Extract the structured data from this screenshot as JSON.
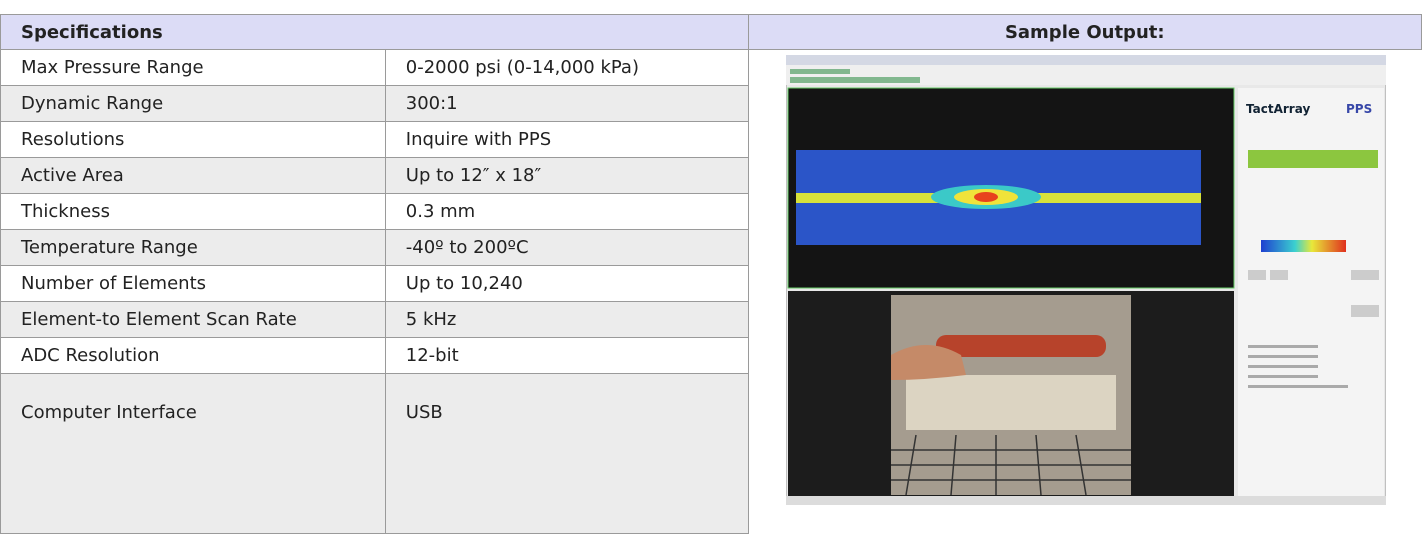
{
  "table": {
    "header": [
      "Specifications",
      "Sample Output:"
    ],
    "rows": [
      [
        "Max Pressure Range",
        "0-2000 psi (0-14,000 kPa)"
      ],
      [
        "Dynamic Range",
        "300:1"
      ],
      [
        "Resolutions",
        "Inquire with PPS"
      ],
      [
        "Active Area",
        "Up to 12″ x 18″"
      ],
      [
        "Thickness",
        "0.3 mm"
      ],
      [
        "Temperature Range",
        "-40º to 200ºC"
      ],
      [
        "Number of Elements",
        "Up to 10,240"
      ],
      [
        "Element-to Element Scan Rate",
        "5 kHz"
      ],
      [
        "ADC Resolution",
        "12-bit"
      ],
      [
        "Computer Interface",
        "USB"
      ]
    ]
  },
  "sample_output": {
    "app_title": "TactArray",
    "logo": "PPS"
  }
}
